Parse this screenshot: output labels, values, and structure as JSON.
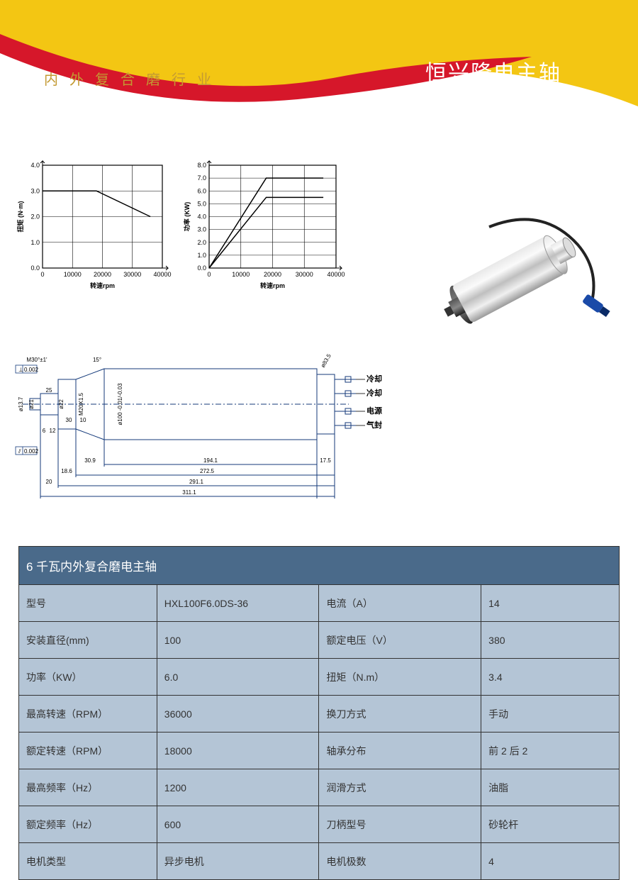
{
  "header": {
    "subtitle": "内外复合磨行业",
    "brand": "恒兴隆电主轴",
    "banner_yellow": "#f3c613",
    "banner_red": "#d6172a",
    "subtitle_color": "#c39a33"
  },
  "chart1": {
    "type": "line",
    "xlabel": "转速rpm",
    "ylabel": "扭矩 (N·m)",
    "xlim": [
      0,
      40000
    ],
    "ylim": [
      0,
      4.0
    ],
    "xticks": [
      0,
      10000,
      20000,
      30000,
      40000
    ],
    "yticks": [
      0,
      1.0,
      2.0,
      3.0,
      4.0
    ],
    "series": [
      {
        "points": [
          [
            0,
            3.0
          ],
          [
            18000,
            3.0
          ],
          [
            36000,
            2.0
          ]
        ],
        "color": "#000",
        "width": 1.5
      }
    ],
    "grid_color": "#000",
    "bg": "#fff"
  },
  "chart2": {
    "type": "line",
    "xlabel": "转速rpm",
    "ylabel": "功率 (KW)",
    "xlim": [
      0,
      40000
    ],
    "ylim": [
      0,
      8.0
    ],
    "xticks": [
      0,
      10000,
      20000,
      30000,
      40000
    ],
    "yticks": [
      0,
      1.0,
      2.0,
      3.0,
      4.0,
      5.0,
      6.0,
      7.0,
      8.0
    ],
    "series": [
      {
        "points": [
          [
            0,
            0
          ],
          [
            18000,
            7.0
          ],
          [
            36000,
            7.0
          ]
        ],
        "color": "#000",
        "width": 1.5
      },
      {
        "points": [
          [
            0,
            0
          ],
          [
            18000,
            5.5
          ],
          [
            36000,
            5.5
          ]
        ],
        "color": "#000",
        "width": 1.5
      }
    ],
    "grid_color": "#000",
    "bg": "#fff"
  },
  "tech_drawing": {
    "labels": {
      "cool1": "冷却",
      "cool2": "冷却",
      "power": "电源",
      "seal": "气封"
    },
    "dims": {
      "total_len": "311.1",
      "len2": "291.1",
      "len3": "272.5",
      "body_len": "194.1",
      "tail": "17.5",
      "front1": "30.9",
      "front2": "18.6",
      "shaft": "25",
      "d_body": "ø100 -0.01/-0.03",
      "d_shaft": "ø21",
      "d_small": "ø13.7",
      "thread": "M20X1.5",
      "d_rear": "ø83.5",
      "d_mid": "ø22",
      "taper": "15°",
      "angle": "M30°±1'",
      "tol": "0.002",
      "h1": "20",
      "h2": "6",
      "h3": "12",
      "h4": "30",
      "h5": "10"
    }
  },
  "spec": {
    "title": "6 千瓦内外复合磨电主轴",
    "rows": [
      [
        "型号",
        "HXL100F6.0DS-36",
        "电流（A）",
        "14"
      ],
      [
        "安装直径(mm)",
        "100",
        "额定电压（V）",
        "380"
      ],
      [
        "功率（KW）",
        "6.0",
        "扭矩（N.m）",
        "3.4"
      ],
      [
        "最高转速（RPM）",
        "36000",
        "换刀方式",
        "手动"
      ],
      [
        "额定转速（RPM）",
        "18000",
        "轴承分布",
        "前 2 后 2"
      ],
      [
        "最高频率（Hz）",
        "1200",
        "润滑方式",
        "油脂"
      ],
      [
        "额定频率（Hz）",
        "600",
        "刀柄型号",
        "砂轮杆"
      ],
      [
        "电机类型",
        "异步电机",
        "电机极数",
        "4"
      ]
    ],
    "header_bg": "#4a6a8a",
    "cell_bg": "#b4c5d6"
  }
}
